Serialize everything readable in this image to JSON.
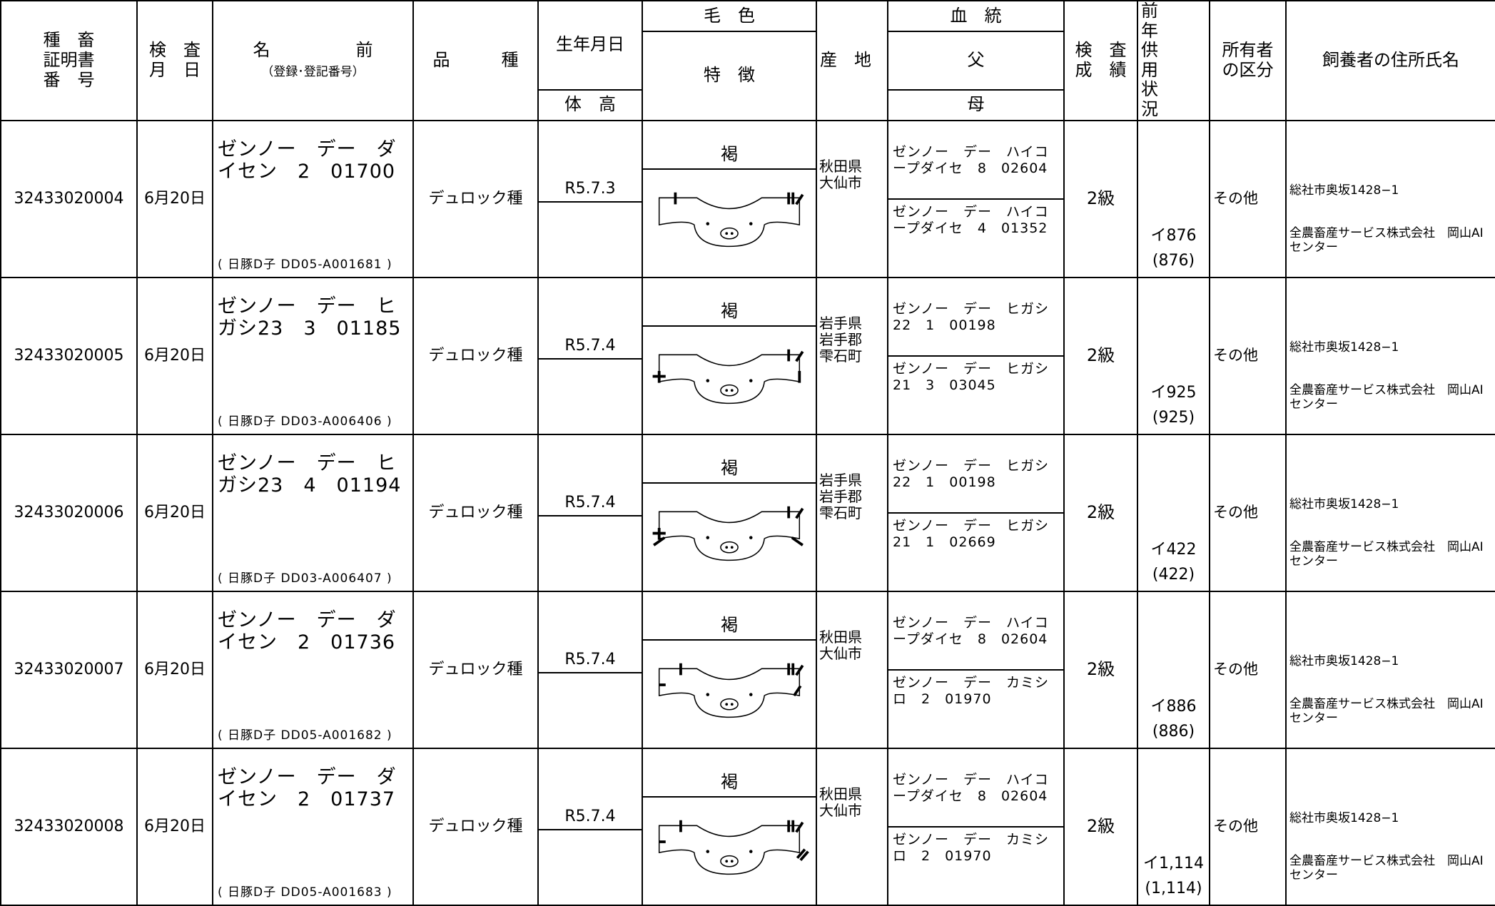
{
  "header": {
    "cert_no": "種　畜\n証明書\n番　号",
    "inspection_date": "検　査\n月　日",
    "name": "名　　　　　前",
    "name_sub": "（登録･登記番号）",
    "breed": "品　　　種",
    "birth": "生年月日",
    "height": "体　高",
    "coat": "毛　色",
    "features": "特　徴",
    "origin": "産　地",
    "pedigree": "血　統",
    "sire": "父",
    "dam": "母",
    "grade": "検　査\n成　績",
    "usage": "前　　年\n供　　用\n状　　況",
    "owner_type": "所有者\nの区分",
    "breeder": "飼養者の住所氏名"
  },
  "rows": [
    {
      "cert_no": "32433020004",
      "date": "6月20日",
      "name": "ゼンノー　デー　ダイセン　2　01700",
      "reg": "( 日豚D子 DD05-A001681 )",
      "breed": "デュロック種",
      "birth": "R5.7.3",
      "coat": "褐",
      "origin": "秋田県\n大仙市",
      "sire": "ゼンノー　デー　ハイコープダイセ　8　02604",
      "dam": "ゼンノー　デー　ハイコープダイセ　4　01352",
      "grade": "2級",
      "usage": "イ876",
      "usage_paren": "(876)",
      "owner_type": "その他",
      "address": "総社市奥坂1428−1",
      "breeder_name": "全農畜産サービス株式会社　岡山AIセンター"
    },
    {
      "cert_no": "32433020005",
      "date": "6月20日",
      "name": "ゼンノー　デー　ヒガシ23　3　01185",
      "reg": "( 日豚D子 DD03-A006406 )",
      "breed": "デュロック種",
      "birth": "R5.7.4",
      "coat": "褐",
      "origin": "岩手県\n岩手郡\n雫石町",
      "sire": "ゼンノー　デー　ヒガシ22　1　00198",
      "dam": "ゼンノー　デー　ヒガシ21　3　03045",
      "grade": "2級",
      "usage": "イ925",
      "usage_paren": "(925)",
      "owner_type": "その他",
      "address": "総社市奥坂1428−1",
      "breeder_name": "全農畜産サービス株式会社　岡山AIセンター"
    },
    {
      "cert_no": "32433020006",
      "date": "6月20日",
      "name": "ゼンノー　デー　ヒガシ23　4　01194",
      "reg": "( 日豚D子 DD03-A006407 )",
      "breed": "デュロック種",
      "birth": "R5.7.4",
      "coat": "褐",
      "origin": "岩手県\n岩手郡\n雫石町",
      "sire": "ゼンノー　デー　ヒガシ22　1　00198",
      "dam": "ゼンノー　デー　ヒガシ21　1　02669",
      "grade": "2級",
      "usage": "イ422",
      "usage_paren": "(422)",
      "owner_type": "その他",
      "address": "総社市奥坂1428−1",
      "breeder_name": "全農畜産サービス株式会社　岡山AIセンター"
    },
    {
      "cert_no": "32433020007",
      "date": "6月20日",
      "name": "ゼンノー　デー　ダイセン　2　01736",
      "reg": "( 日豚D子 DD05-A001682 )",
      "breed": "デュロック種",
      "birth": "R5.7.4",
      "coat": "褐",
      "origin": "秋田県\n大仙市",
      "sire": "ゼンノー　デー　ハイコープダイセ　8　02604",
      "dam": "ゼンノー　デー　カミシロ　2　01970",
      "grade": "2級",
      "usage": "イ886",
      "usage_paren": "(886)",
      "owner_type": "その他",
      "address": "総社市奥坂1428−1",
      "breeder_name": "全農畜産サービス株式会社　岡山AIセンター"
    },
    {
      "cert_no": "32433020008",
      "date": "6月20日",
      "name": "ゼンノー　デー　ダイセン　2　01737",
      "reg": "( 日豚D子 DD05-A001683 )",
      "breed": "デュロック種",
      "birth": "R5.7.4",
      "coat": "褐",
      "origin": "秋田県\n大仙市",
      "sire": "ゼンノー　デー　ハイコープダイセ　8　02604",
      "dam": "ゼンノー　デー　カミシロ　2　01970",
      "grade": "2級",
      "usage": "イ1,114",
      "usage_paren": "(1,114)",
      "owner_type": "その他",
      "address": "総社市奥坂1428−1",
      "breeder_name": "全農畜産サービス株式会社　岡山AIセンター"
    }
  ]
}
